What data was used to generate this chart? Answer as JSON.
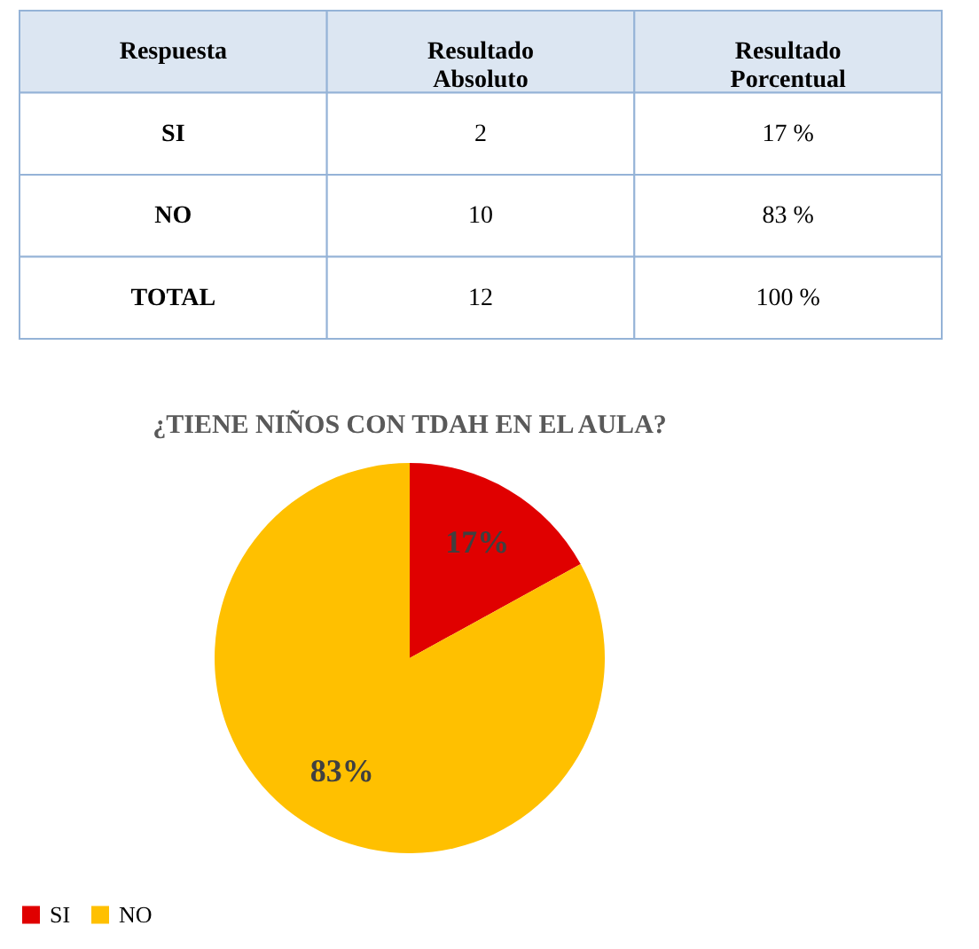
{
  "chart_data": [
    {
      "type": "other",
      "categories": [
        "Respuesta",
        "Resultado Absoluto",
        "Resultado Porcentual"
      ],
      "annotations": [
        "SI",
        "2",
        "17 %",
        "NO",
        "10",
        "83 %",
        "TOTAL",
        "12",
        "100 %"
      ]
    },
    {
      "type": "pie",
      "title": "¿TIENE NIÑOS CON TDAH EN EL AULA?",
      "categories": [
        "SI",
        "NO"
      ],
      "values": [
        17,
        83
      ],
      "colors": [
        "#e00000",
        "#ffc000"
      ],
      "value_labels": [
        "17%",
        "83%"
      ],
      "legend": "bottom"
    }
  ]
}
